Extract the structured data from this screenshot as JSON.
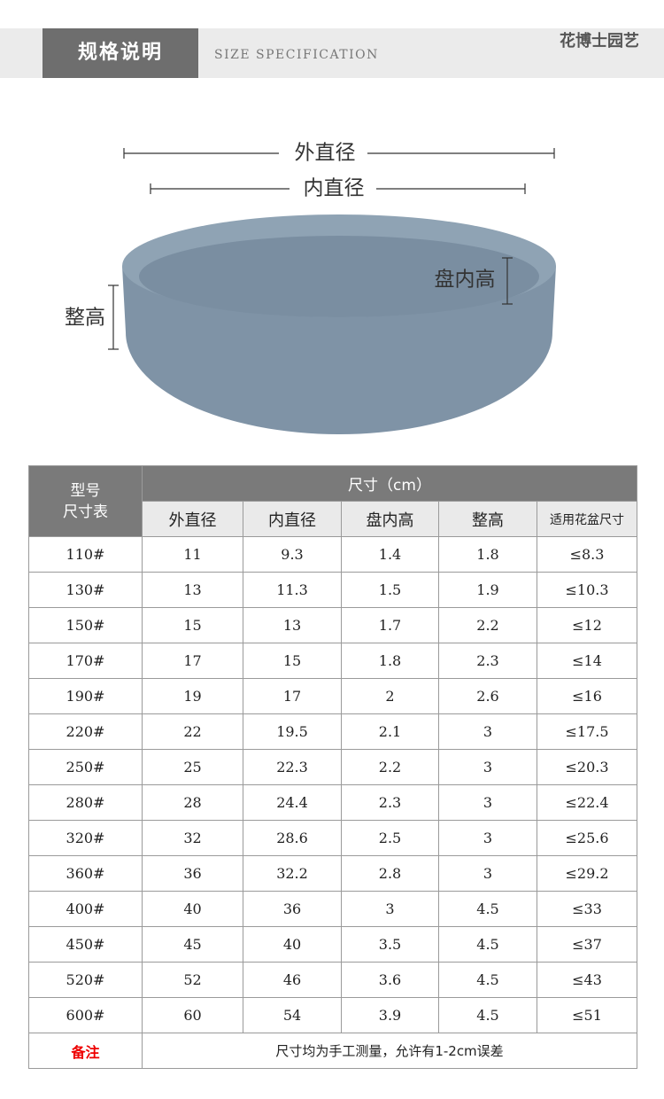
{
  "header": {
    "title": "规格说明",
    "subtitle": "SIZE SPECIFICATION",
    "brand": "花博士园艺"
  },
  "diagram": {
    "outer": "外直径",
    "inner": "内直径",
    "depth": "盘内高",
    "height": "整高"
  },
  "table": {
    "corner": [
      "型号",
      "尺寸表"
    ],
    "group": "尺寸（cm）",
    "columns": [
      "外直径",
      "内直径",
      "盘内高",
      "整高",
      "适用花盆尺寸"
    ],
    "rows": [
      [
        "110#",
        "11",
        "9.3",
        "1.4",
        "1.8",
        "≤8.3"
      ],
      [
        "130#",
        "13",
        "11.3",
        "1.5",
        "1.9",
        "≤10.3"
      ],
      [
        "150#",
        "15",
        "13",
        "1.7",
        "2.2",
        "≤12"
      ],
      [
        "170#",
        "17",
        "15",
        "1.8",
        "2.3",
        "≤14"
      ],
      [
        "190#",
        "19",
        "17",
        "2",
        "2.6",
        "≤16"
      ],
      [
        "220#",
        "22",
        "19.5",
        "2.1",
        "3",
        "≤17.5"
      ],
      [
        "250#",
        "25",
        "22.3",
        "2.2",
        "3",
        "≤20.3"
      ],
      [
        "280#",
        "28",
        "24.4",
        "2.3",
        "3",
        "≤22.4"
      ],
      [
        "320#",
        "32",
        "28.6",
        "2.5",
        "3",
        "≤25.6"
      ],
      [
        "360#",
        "36",
        "32.2",
        "2.8",
        "3",
        "≤29.2"
      ],
      [
        "400#",
        "40",
        "36",
        "3",
        "4.5",
        "≤33"
      ],
      [
        "450#",
        "45",
        "40",
        "3.5",
        "4.5",
        "≤37"
      ],
      [
        "520#",
        "52",
        "46",
        "3.6",
        "4.5",
        "≤43"
      ],
      [
        "600#",
        "60",
        "54",
        "3.9",
        "4.5",
        "≤51"
      ]
    ],
    "note": {
      "label": "备注",
      "text": "尺寸均为手工测量，允许有1-2cm误差"
    }
  }
}
